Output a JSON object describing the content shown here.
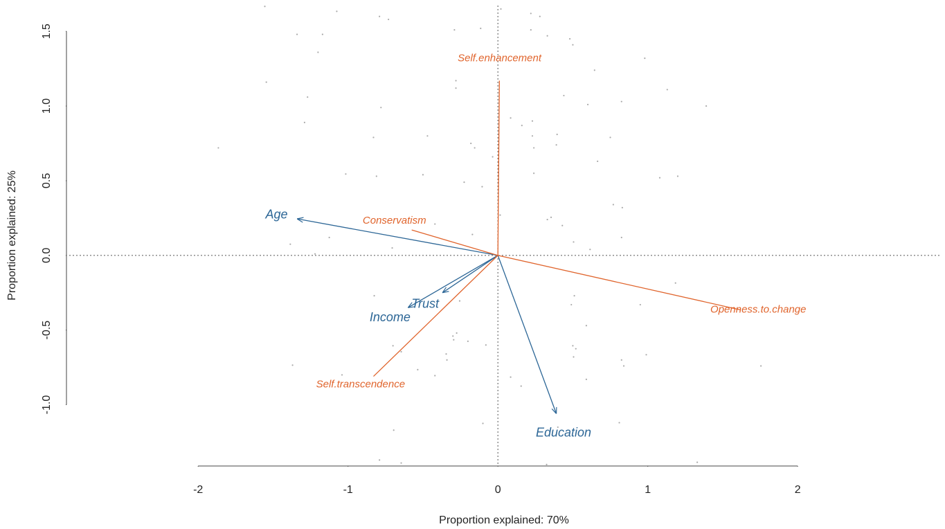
{
  "chart_data": {
    "type": "biplot",
    "xlabel": "Proportion explained: 70%",
    "ylabel": "Proportion explained: 25%",
    "xlim": [
      -2.86,
      2.96
    ],
    "ylim": [
      -1.41,
      1.71
    ],
    "xticks": [
      -2,
      -1,
      0,
      1,
      2
    ],
    "yticks": [
      {
        "value": -1.0,
        "label": "-1.0"
      },
      -0.5,
      {
        "value": 0.0,
        "label": "0.0"
      },
      0.5,
      {
        "value": 1.0,
        "label": "1.0"
      },
      1.5
    ],
    "points": {
      "color": "#aaaaaa",
      "x": [
        -1.555,
        -1.075,
        -0.79,
        -0.73,
        0.02,
        0.22,
        0.28,
        -0.29,
        -0.115,
        0.22,
        0.33,
        -1.34,
        -1.17,
        0.48,
        0.5,
        -1.2,
        0.98,
        0.645,
        -1.545,
        -0.28,
        -0.28,
        1.13,
        -1.27,
        0.44,
        0.825,
        1.39,
        -0.78,
        0.6,
        0.085,
        0.23,
        -1.29,
        0.16,
        -0.47,
        -0.83,
        0.23,
        0.395,
        0.75,
        -0.18,
        -0.155,
        0.24,
        0.39,
        -1.865,
        -0.035,
        0.665,
        0.24,
        -0.5,
        -1.015,
        -0.81,
        1.08,
        1.2,
        -0.225,
        -0.105,
        0.77,
        0.83,
        0.015,
        0.33,
        0.355,
        -0.42,
        0.43,
        -0.17,
        -1.125,
        0.825,
        -1.385,
        0.505,
        -0.705,
        0.615,
        -1.22,
        1.185,
        0.51,
        -0.825,
        -0.255,
        0.95,
        0.49,
        0.59,
        -0.275,
        -0.3,
        -0.295,
        -0.2,
        -0.08,
        0.5,
        0.52,
        -0.7,
        -0.645,
        -0.345,
        -0.34,
        0.505,
        0.99,
        0.825,
        0.84,
        1.755,
        -1.37,
        -0.535,
        -1.04,
        -0.42,
        0.085,
        0.59,
        0.155,
        -0.1,
        0.81,
        0.4,
        -0.695,
        -0.79,
        -0.645,
        1.33,
        0.325
      ],
      "y": [
        1.667,
        1.634,
        1.6,
        1.58,
        1.65,
        1.62,
        1.6,
        1.51,
        1.52,
        1.51,
        1.47,
        1.48,
        1.48,
        1.45,
        1.41,
        1.36,
        1.32,
        1.24,
        1.16,
        1.17,
        1.12,
        1.11,
        1.06,
        1.07,
        1.03,
        1.0,
        0.99,
        1.01,
        0.92,
        0.9,
        0.89,
        0.87,
        0.8,
        0.79,
        0.8,
        0.81,
        0.79,
        0.75,
        0.72,
        0.72,
        0.74,
        0.72,
        0.66,
        0.63,
        0.55,
        0.54,
        0.545,
        0.53,
        0.52,
        0.53,
        0.49,
        0.46,
        0.34,
        0.32,
        0.27,
        0.24,
        0.255,
        0.21,
        0.2,
        0.14,
        0.12,
        0.12,
        0.075,
        0.09,
        0.05,
        0.04,
        0.01,
        -0.185,
        -0.27,
        -0.27,
        -0.305,
        -0.33,
        -0.33,
        -0.47,
        -0.52,
        -0.54,
        -0.565,
        -0.575,
        -0.6,
        -0.605,
        -0.625,
        -0.605,
        -0.645,
        -0.66,
        -0.7,
        -0.68,
        -0.665,
        -0.7,
        -0.74,
        -0.74,
        -0.735,
        -0.765,
        -0.8,
        -0.805,
        -0.815,
        -0.83,
        -0.875,
        -1.125,
        -1.12,
        -1.15,
        -1.17,
        -1.37,
        -1.39,
        -1.385,
        -1.4
      ]
    },
    "vectors": [
      {
        "label": "Age",
        "x": -1.34,
        "y": 0.245,
        "color": "#2c6696",
        "arrow": true
      },
      {
        "label": "Income",
        "x": -0.6,
        "y": -0.35,
        "color": "#2c6696",
        "arrow": true
      },
      {
        "label": "Trust",
        "x": -0.37,
        "y": -0.25,
        "color": "#2c6696",
        "arrow": true
      },
      {
        "label": "Education",
        "x": 0.39,
        "y": -1.06,
        "color": "#2c6696",
        "arrow": true
      },
      {
        "label": "Self.enhancement",
        "x": 0.01,
        "y": 1.17,
        "color": "#e0642c",
        "arrow": false
      },
      {
        "label": "Conservatism",
        "x": -0.575,
        "y": 0.17,
        "color": "#e0642c",
        "arrow": false
      },
      {
        "label": "Openness.to.change",
        "x": 1.62,
        "y": -0.365,
        "color": "#e0642c",
        "arrow": false
      },
      {
        "label": "Self.transcendence",
        "x": -0.83,
        "y": -0.81,
        "color": "#e0642c",
        "arrow": false
      }
    ]
  }
}
